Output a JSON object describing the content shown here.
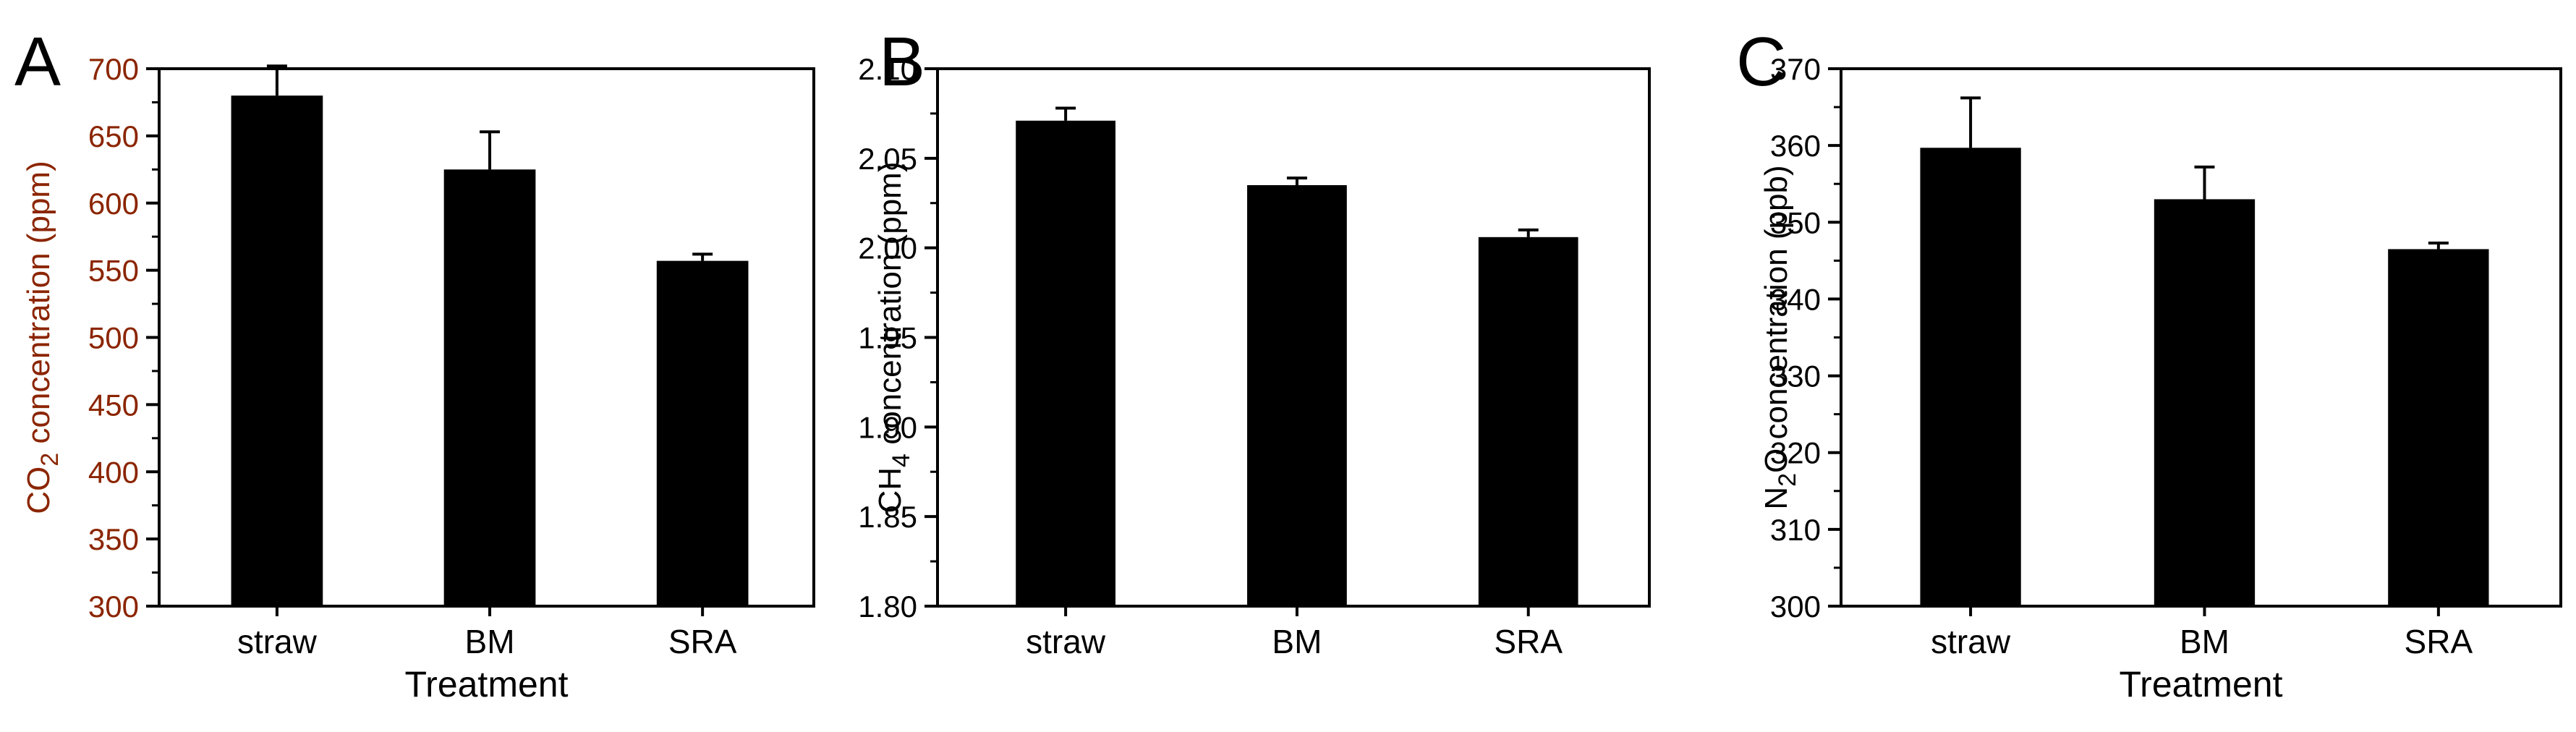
{
  "chart_data": [
    {
      "type": "bar",
      "panel_label": "A",
      "categories": [
        "straw",
        "BM",
        "SRA"
      ],
      "values": [
        680,
        625,
        557
      ],
      "errors": [
        22,
        28,
        5
      ],
      "xlabel": "Treatment",
      "ylabel_parts": [
        "CO",
        "2",
        " concentration (ppm)"
      ],
      "ylim": [
        300,
        700
      ],
      "yticks": [
        300,
        350,
        400,
        450,
        500,
        550,
        600,
        650,
        700
      ],
      "ytick_labels": [
        "300",
        "350",
        "400",
        "450",
        "500",
        "550",
        "600",
        "650",
        "700"
      ],
      "ylabel_color": "#8b2500",
      "ytick_color": "#8b2500",
      "bar_color": "#000000"
    },
    {
      "type": "bar",
      "panel_label": "B",
      "categories": [
        "straw",
        "BM",
        "SRA"
      ],
      "values": [
        2.071,
        2.035,
        2.006
      ],
      "errors": [
        0.007,
        0.004,
        0.004
      ],
      "xlabel": "",
      "ylabel_parts": [
        "CH",
        "4",
        " concentration (ppm)"
      ],
      "ylim": [
        1.8,
        2.1
      ],
      "yticks": [
        1.8,
        1.85,
        1.9,
        1.95,
        2.0,
        2.05,
        2.1
      ],
      "ytick_labels": [
        "1.80",
        "1.85",
        "1.90",
        "1.95",
        "2.00",
        "2.05",
        "2.10"
      ],
      "ylabel_color": "#000000",
      "ytick_color": "#000000",
      "bar_color": "#000000"
    },
    {
      "type": "bar",
      "panel_label": "C",
      "categories": [
        "straw",
        "BM",
        "SRA"
      ],
      "values": [
        359.7,
        353.0,
        346.5
      ],
      "errors": [
        6.5,
        4.2,
        0.8
      ],
      "xlabel": "Treatment",
      "ylabel_parts": [
        "N",
        "2",
        "O concentration (ppb)"
      ],
      "ylim": [
        300,
        370
      ],
      "yticks": [
        300,
        310,
        320,
        330,
        340,
        350,
        360,
        370
      ],
      "ytick_labels": [
        "300",
        "310",
        "320",
        "330",
        "340",
        "350",
        "360",
        "370"
      ],
      "ylabel_color": "#000000",
      "ytick_color": "#000000",
      "bar_color": "#000000"
    }
  ]
}
